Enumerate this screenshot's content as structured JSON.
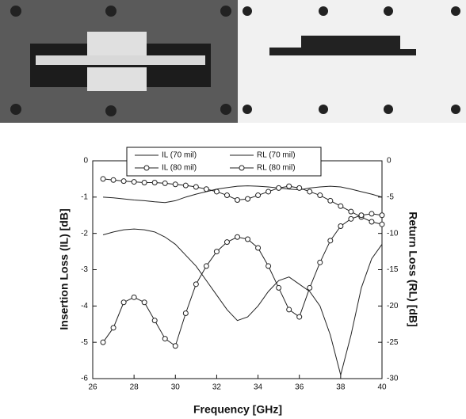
{
  "chart_data": {
    "type": "line",
    "x_label": "Frequency [GHz]",
    "y_label": "Insertion Loss (IL)  [dB]",
    "y2_label": "Return Loss (RL)  [dB]",
    "x": [
      26.5,
      27,
      27.5,
      28,
      28.5,
      29,
      29.5,
      30,
      30.5,
      31,
      31.5,
      32,
      32.5,
      33,
      33.5,
      34,
      34.5,
      35,
      35.5,
      36,
      36.5,
      37,
      37.5,
      38,
      38.5,
      39,
      39.5,
      40
    ],
    "series": [
      {
        "name": "IL (70 mil)",
        "color": "#222222",
        "marker": "none",
        "values": [
          -1.0,
          -1.02,
          -1.05,
          -1.08,
          -1.1,
          -1.13,
          -1.15,
          -1.1,
          -1.0,
          -0.92,
          -0.85,
          -0.78,
          -0.74,
          -0.7,
          -0.69,
          -0.7,
          -0.72,
          -0.75,
          -0.78,
          -0.8,
          -0.75,
          -0.72,
          -0.7,
          -0.72,
          -0.78,
          -0.85,
          -0.92,
          -1.0
        ]
      },
      {
        "name": "RL (70 mil)",
        "color": "#222222",
        "marker": "none",
        "axis": "y2",
        "values": [
          -10.2,
          -9.8,
          -9.5,
          -9.4,
          -9.5,
          -9.8,
          -10.5,
          -11.5,
          -13,
          -14.5,
          -16.5,
          -18.5,
          -20.5,
          -22,
          -21.5,
          -20,
          -18,
          -16.5,
          -16,
          -17,
          -18,
          -20,
          -24,
          -29.5,
          -24,
          -17.5,
          -13.5,
          -11.5
        ]
      },
      {
        "name": "IL (80 mil)",
        "color": "#222222",
        "marker": "circle",
        "values": [
          -0.5,
          -0.53,
          -0.56,
          -0.58,
          -0.6,
          -0.6,
          -0.62,
          -0.65,
          -0.68,
          -0.72,
          -0.78,
          -0.85,
          -0.95,
          -1.08,
          -1.05,
          -0.95,
          -0.85,
          -0.75,
          -0.7,
          -0.75,
          -0.85,
          -0.95,
          -1.1,
          -1.25,
          -1.4,
          -1.55,
          -1.68,
          -1.75
        ]
      },
      {
        "name": "RL (80 mil)",
        "color": "#222222",
        "marker": "circle",
        "axis": "y2",
        "values": [
          -25,
          -23,
          -19.5,
          -18.8,
          -19.5,
          -22,
          -24.5,
          -25.5,
          -21,
          -17,
          -14.5,
          -12.5,
          -11.2,
          -10.5,
          -10.8,
          -12,
          -14.5,
          -17.5,
          -20.5,
          -21.5,
          -17.5,
          -14,
          -11,
          -9,
          -8,
          -7.5,
          -7.3,
          -7.5
        ]
      }
    ],
    "xlim": [
      26,
      40
    ],
    "xticks": [
      26,
      28,
      30,
      32,
      34,
      36,
      38,
      40
    ],
    "ylim": [
      -6,
      0
    ],
    "yticks": [
      0,
      -1,
      -2,
      -3,
      -4,
      -5,
      -6
    ],
    "y2lim": [
      -30,
      0
    ],
    "y2ticks": [
      0,
      -5,
      -10,
      -15,
      -20,
      -25,
      -30
    ],
    "grid": false
  }
}
